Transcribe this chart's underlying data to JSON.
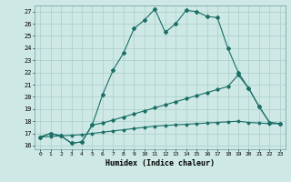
{
  "xlabel": "Humidex (Indice chaleur)",
  "background_color": "#cde8e5",
  "grid_color": "#aacfcb",
  "line_color": "#1a6e66",
  "xlim": [
    -0.5,
    23.5
  ],
  "ylim": [
    15.7,
    27.5
  ],
  "yticks": [
    16,
    17,
    18,
    19,
    20,
    21,
    22,
    23,
    24,
    25,
    26,
    27
  ],
  "xticks": [
    0,
    1,
    2,
    3,
    4,
    5,
    6,
    7,
    8,
    9,
    10,
    11,
    12,
    13,
    14,
    15,
    16,
    17,
    18,
    19,
    20,
    21,
    22,
    23
  ],
  "line1_x": [
    0,
    1,
    2,
    3,
    4,
    5,
    6,
    7,
    8,
    9,
    10,
    11,
    12,
    13,
    14,
    15,
    16,
    17,
    18,
    19,
    20,
    21,
    22,
    23
  ],
  "line1_y": [
    16.7,
    17.0,
    16.8,
    16.2,
    16.3,
    17.7,
    20.2,
    22.2,
    23.6,
    25.6,
    26.3,
    27.2,
    25.3,
    26.0,
    27.1,
    27.0,
    26.6,
    26.5,
    24.0,
    22.0,
    20.7,
    19.2,
    17.9,
    17.8
  ],
  "line2_x": [
    0,
    1,
    2,
    3,
    4,
    5,
    6,
    7,
    8,
    9,
    10,
    11,
    12,
    13,
    14,
    15,
    16,
    17,
    18,
    19,
    20,
    21,
    22,
    23
  ],
  "line2_y": [
    16.7,
    17.0,
    16.8,
    16.2,
    16.3,
    17.7,
    17.85,
    18.1,
    18.35,
    18.6,
    18.85,
    19.1,
    19.35,
    19.6,
    19.85,
    20.1,
    20.35,
    20.6,
    20.85,
    21.8,
    20.7,
    19.2,
    17.9,
    17.8
  ],
  "line3_x": [
    0,
    1,
    2,
    3,
    4,
    5,
    6,
    7,
    8,
    9,
    10,
    11,
    12,
    13,
    14,
    15,
    16,
    17,
    18,
    19,
    20,
    21,
    22,
    23
  ],
  "line3_y": [
    16.7,
    16.75,
    16.8,
    16.85,
    16.9,
    17.0,
    17.1,
    17.2,
    17.3,
    17.4,
    17.5,
    17.6,
    17.65,
    17.7,
    17.75,
    17.8,
    17.85,
    17.9,
    17.95,
    18.0,
    17.9,
    17.85,
    17.8,
    17.8
  ]
}
